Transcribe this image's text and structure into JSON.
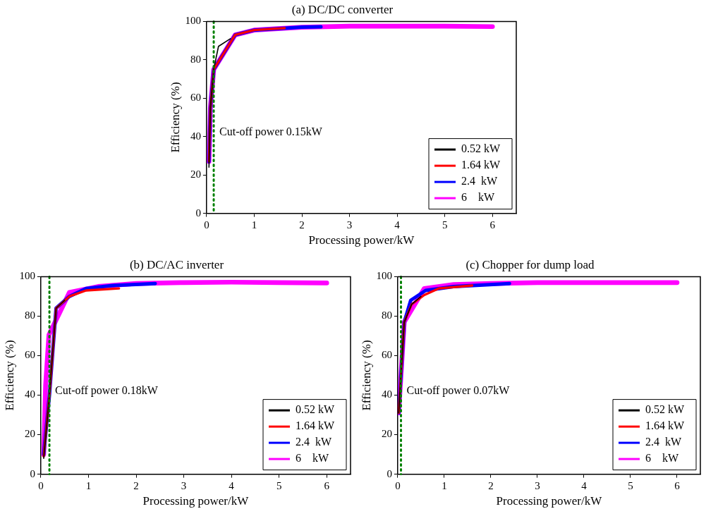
{
  "chart_data": [
    {
      "type": "line",
      "title": "(a) DC/DC converter",
      "xlabel": "Processing power/kW",
      "ylabel": "Efficiency (%)",
      "xlim": [
        0,
        6.5
      ],
      "ylim": [
        0,
        100
      ],
      "xticks": [
        0,
        1,
        2,
        3,
        4,
        5,
        6
      ],
      "yticks": [
        0,
        20,
        40,
        60,
        80,
        100
      ],
      "grid": false,
      "legend": "bottom right",
      "marker": "none",
      "line_style": "solid",
      "ref_lines": [
        {
          "axis": "x",
          "value": 0.15,
          "label": "Cut-off power 0.15kW",
          "color": "#008000",
          "line_style": "dotted"
        }
      ],
      "series": [
        {
          "name": "0.52 kW",
          "color": "#000000",
          "x": [
            0.05,
            0.08,
            0.15,
            0.25,
            0.5
          ],
          "values": [
            24,
            55,
            75,
            87,
            91
          ]
        },
        {
          "name": "1.64 kW",
          "color": "#ff0000",
          "x": [
            0.05,
            0.08,
            0.15,
            0.6,
            1,
            1.64
          ],
          "values": [
            27,
            55,
            75,
            93,
            95.5,
            96.5
          ]
        },
        {
          "name": "2.4  kW",
          "color": "#0000ff",
          "x": [
            0.05,
            0.08,
            0.15,
            0.6,
            1,
            2,
            2.4
          ],
          "values": [
            27,
            55,
            75,
            93,
            95.5,
            97,
            97.2
          ]
        },
        {
          "name": "6    kW",
          "color": "#ff00ff",
          "x": [
            0.05,
            0.08,
            0.15,
            0.6,
            1,
            2,
            3,
            4,
            5,
            6
          ],
          "values": [
            27,
            55,
            75,
            93,
            95.5,
            97,
            97.5,
            97.5,
            97.5,
            97.3
          ]
        }
      ]
    },
    {
      "type": "line",
      "title": "(b) DC/AC inverter",
      "xlabel": "Processing power/kW",
      "ylabel": "Efficiency (%)",
      "xlim": [
        0,
        6.5
      ],
      "ylim": [
        0,
        100
      ],
      "xticks": [
        0,
        1,
        2,
        3,
        4,
        5,
        6
      ],
      "yticks": [
        0,
        20,
        40,
        60,
        80,
        100
      ],
      "grid": false,
      "legend": "bottom right",
      "marker": "none",
      "line_style": "solid",
      "ref_lines": [
        {
          "axis": "x",
          "value": 0.18,
          "label": "Cut-off power 0.18kW",
          "color": "#008000",
          "line_style": "dotted"
        }
      ],
      "series": [
        {
          "name": "0.52 kW",
          "color": "#000000",
          "x": [
            0.06,
            0.18,
            0.32,
            0.5
          ],
          "values": [
            8,
            40,
            84,
            88
          ]
        },
        {
          "name": "1.64 kW",
          "color": "#ff0000",
          "x": [
            0.06,
            0.18,
            0.32,
            0.6,
            0.95,
            1.64
          ],
          "values": [
            9,
            40,
            84,
            90,
            93,
            94
          ]
        },
        {
          "name": "2.4  kW",
          "color": "#0000ff",
          "x": [
            0.06,
            0.18,
            0.32,
            0.6,
            0.95,
            1.5,
            2.4
          ],
          "values": [
            10,
            40,
            84,
            90,
            94,
            95.5,
            96.5
          ]
        },
        {
          "name": "6    kW",
          "color": "#ff00ff",
          "x": [
            0.06,
            0.1,
            0.17,
            0.6,
            1.2,
            2,
            3,
            4,
            5,
            6
          ],
          "values": [
            10,
            45,
            70.5,
            92,
            95,
            96.5,
            97,
            97.2,
            97,
            96.8
          ]
        }
      ]
    },
    {
      "type": "line",
      "title": "(c) Chopper for dump load",
      "xlabel": "Processing power/kW",
      "ylabel": "Efficiency (%)",
      "xlim": [
        0,
        6.5
      ],
      "ylim": [
        0,
        100
      ],
      "xticks": [
        0,
        1,
        2,
        3,
        4,
        5,
        6
      ],
      "yticks": [
        0,
        20,
        40,
        60,
        80,
        100
      ],
      "grid": false,
      "legend": "bottom right",
      "marker": "none",
      "line_style": "solid",
      "ref_lines": [
        {
          "axis": "x",
          "value": 0.07,
          "label": "Cut-off power 0.07kW",
          "color": "#008000",
          "line_style": "dotted"
        }
      ],
      "series": [
        {
          "name": "0.52 kW",
          "color": "#000000",
          "x": [
            0.02,
            0.14,
            0.3,
            0.5
          ],
          "values": [
            31,
            77,
            86,
            90
          ]
        },
        {
          "name": "1.64 kW",
          "color": "#ff0000",
          "x": [
            0.02,
            0.14,
            0.3,
            0.57,
            0.88,
            1.6
          ],
          "values": [
            31,
            77,
            86,
            90.7,
            94,
            95.5
          ]
        },
        {
          "name": "2.4  kW",
          "color": "#0000ff",
          "x": [
            0.02,
            0.14,
            0.28,
            0.6,
            1.2,
            2.4
          ],
          "values": [
            31,
            77,
            88,
            93,
            95,
            96.5
          ]
        },
        {
          "name": "6    kW",
          "color": "#ff00ff",
          "x": [
            0.02,
            0.14,
            0.57,
            1.2,
            2,
            3,
            4,
            5,
            6
          ],
          "values": [
            31,
            77,
            94,
            96,
            96.5,
            97,
            97,
            97,
            97
          ]
        }
      ]
    }
  ]
}
